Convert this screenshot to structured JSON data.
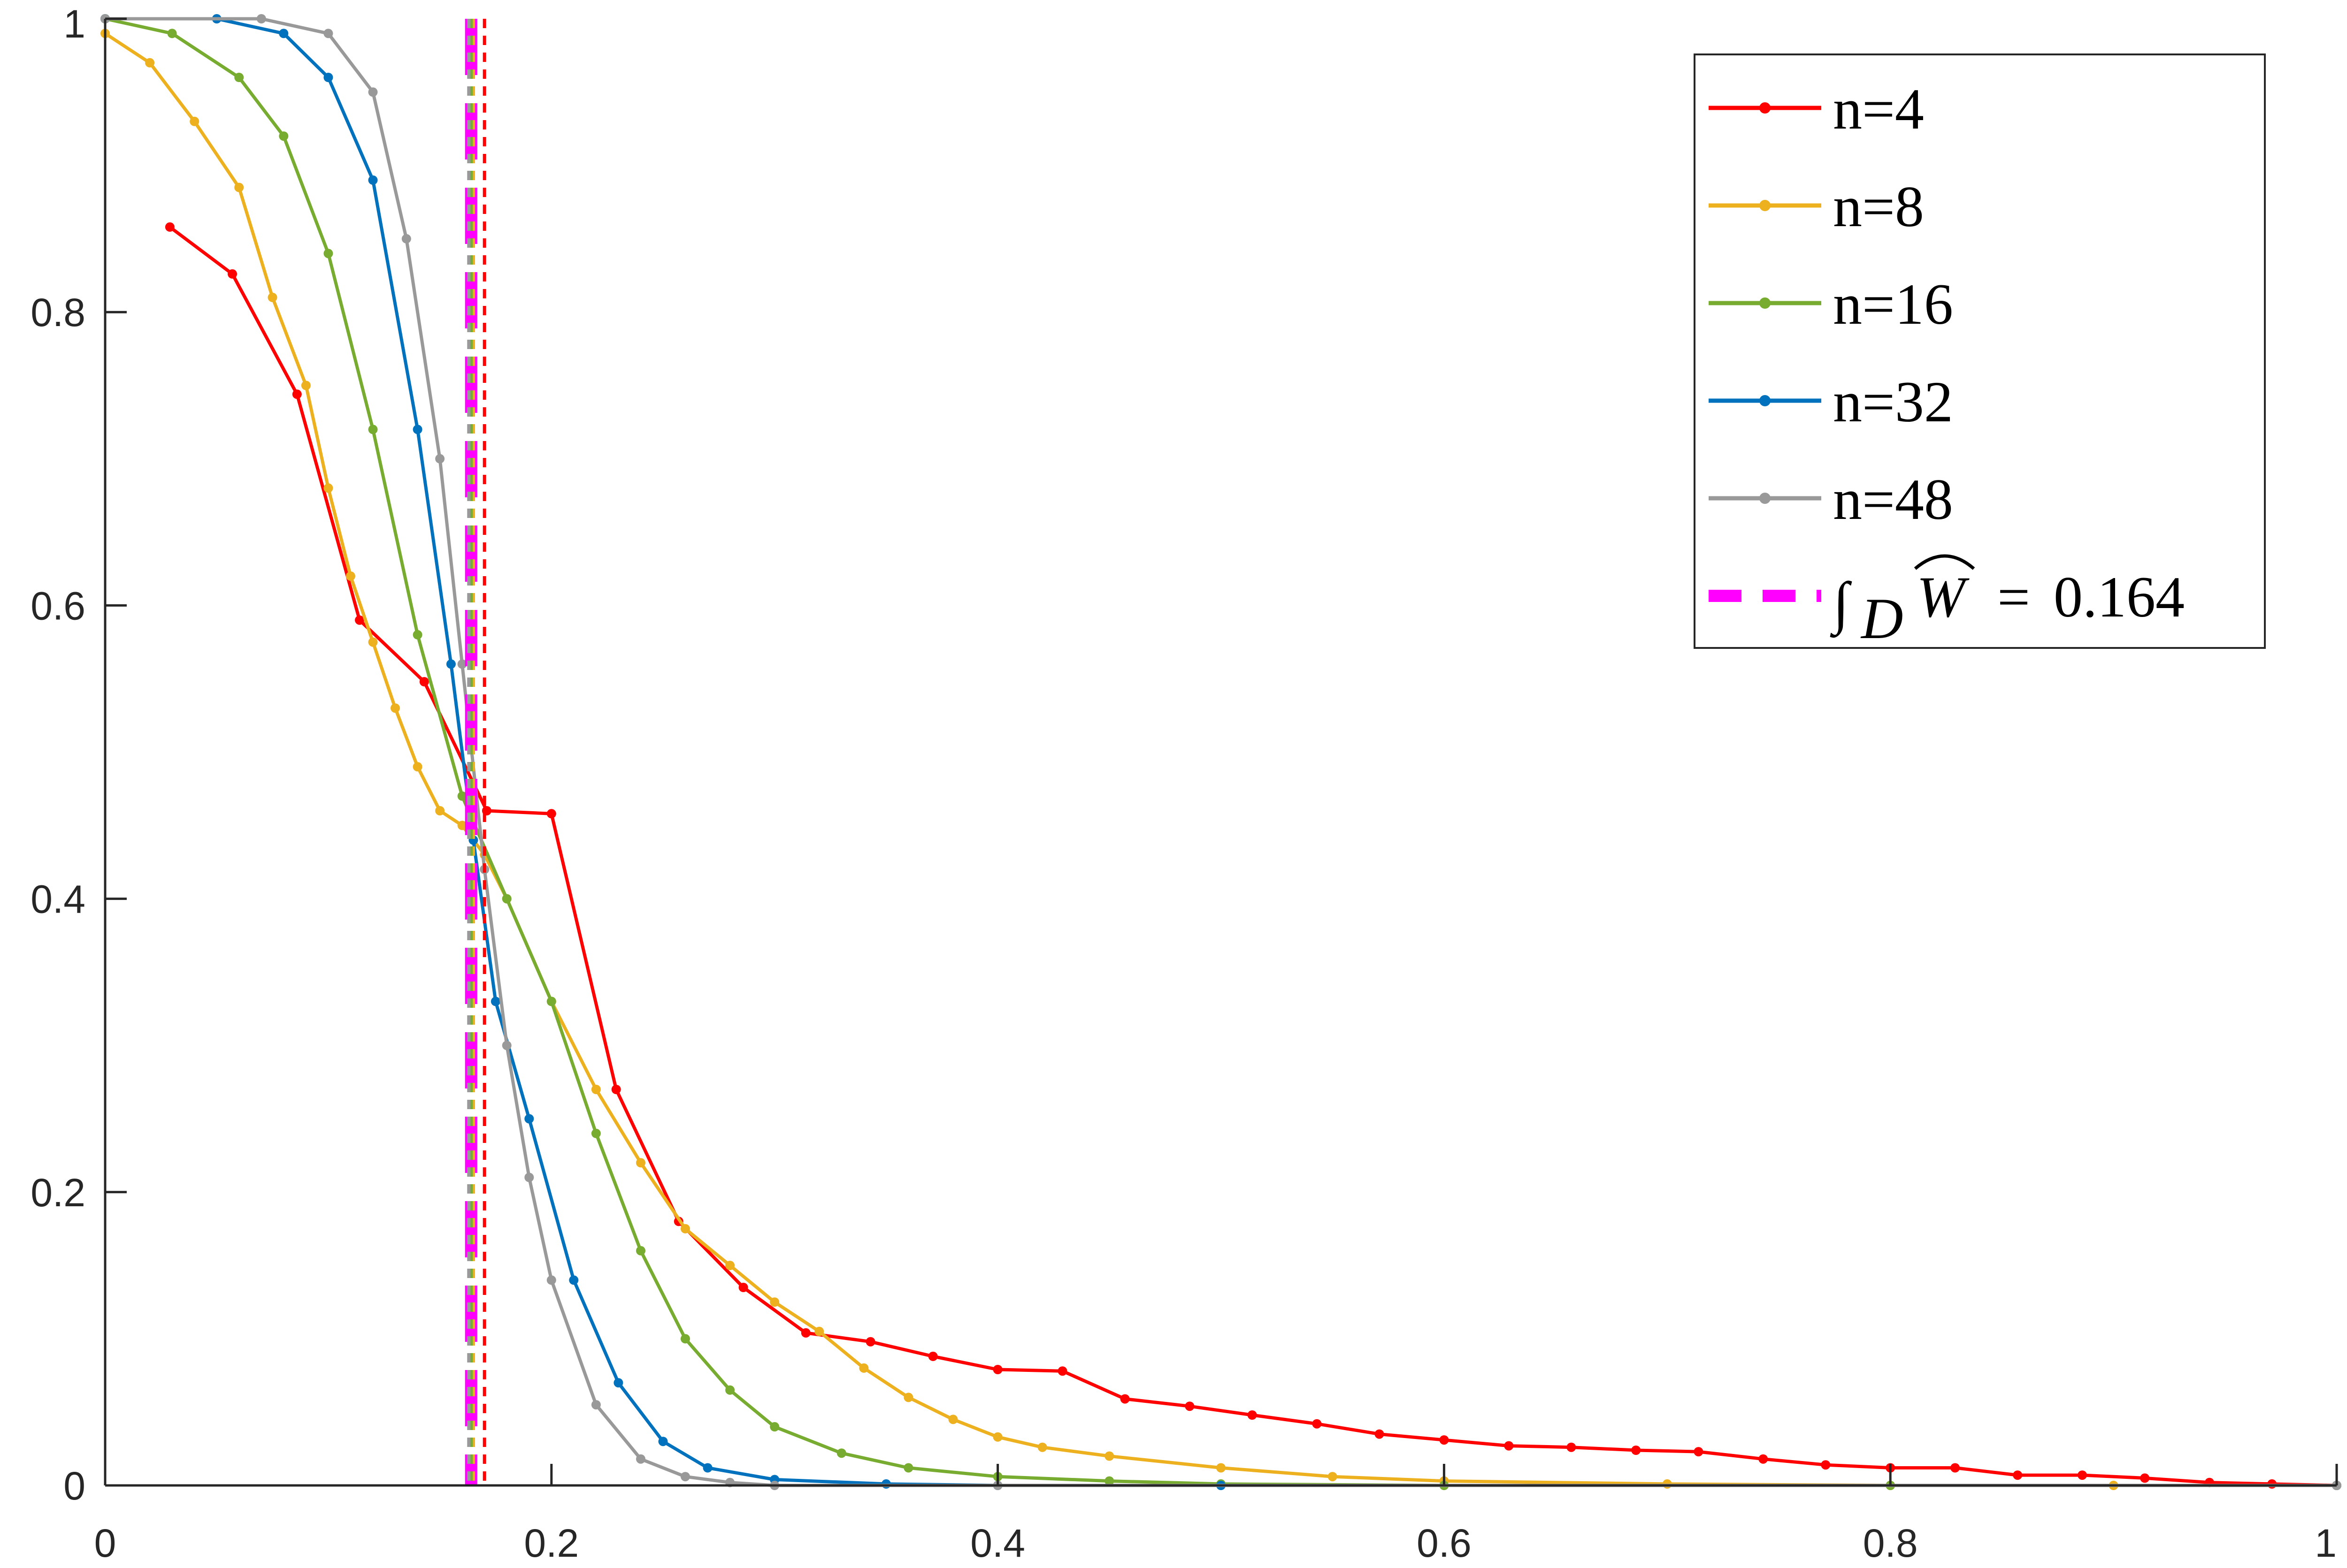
{
  "chart_data": {
    "type": "line",
    "xlim": [
      0,
      1
    ],
    "ylim": [
      0,
      1
    ],
    "x_ticks": [
      "0",
      "0.2",
      "0.4",
      "0.6",
      "0.8",
      "1"
    ],
    "y_ticks": [
      "0",
      "0.2",
      "0.4",
      "0.6",
      "0.8",
      "1"
    ],
    "grid": false,
    "legend_position": "top-right",
    "series": [
      {
        "name": "n=4",
        "color": "#ff0000",
        "marker": "dot",
        "x": [
          0.029,
          0.057,
          0.086,
          0.114,
          0.143,
          0.171,
          0.2,
          0.229,
          0.257,
          0.286,
          0.314,
          0.343,
          0.371,
          0.4,
          0.429,
          0.457,
          0.486,
          0.514,
          0.543,
          0.571,
          0.6,
          0.629,
          0.657,
          0.686,
          0.714,
          0.743,
          0.771,
          0.8,
          0.829,
          0.857,
          0.886,
          0.914,
          0.943,
          0.971,
          1.0
        ],
        "y": [
          0.858,
          0.826,
          0.744,
          0.59,
          0.548,
          0.46,
          0.458,
          0.27,
          0.18,
          0.135,
          0.104,
          0.098,
          0.088,
          0.079,
          0.078,
          0.059,
          0.054,
          0.048,
          0.042,
          0.035,
          0.031,
          0.027,
          0.026,
          0.024,
          0.023,
          0.018,
          0.014,
          0.012,
          0.012,
          0.007,
          0.007,
          0.005,
          0.002,
          0.001,
          0.0
        ]
      },
      {
        "name": "n=8",
        "color": "#edb120",
        "marker": "dot",
        "x": [
          0.0,
          0.02,
          0.04,
          0.06,
          0.075,
          0.09,
          0.1,
          0.11,
          0.12,
          0.13,
          0.14,
          0.15,
          0.16,
          0.17,
          0.18,
          0.2,
          0.22,
          0.24,
          0.26,
          0.28,
          0.3,
          0.32,
          0.34,
          0.36,
          0.38,
          0.4,
          0.42,
          0.45,
          0.5,
          0.55,
          0.6,
          0.7,
          0.8,
          0.9,
          1.0
        ],
        "y": [
          0.99,
          0.97,
          0.93,
          0.885,
          0.81,
          0.75,
          0.68,
          0.62,
          0.575,
          0.53,
          0.49,
          0.46,
          0.45,
          0.43,
          0.4,
          0.33,
          0.27,
          0.22,
          0.175,
          0.15,
          0.125,
          0.105,
          0.08,
          0.06,
          0.045,
          0.033,
          0.026,
          0.02,
          0.012,
          0.006,
          0.003,
          0.001,
          0.0,
          0.0,
          0.0
        ]
      },
      {
        "name": "n=16",
        "color": "#77ac30",
        "marker": "dot",
        "x": [
          0.0,
          0.03,
          0.06,
          0.08,
          0.1,
          0.12,
          0.14,
          0.16,
          0.18,
          0.2,
          0.22,
          0.24,
          0.26,
          0.28,
          0.3,
          0.33,
          0.36,
          0.4,
          0.45,
          0.5,
          0.6,
          0.8,
          1.0
        ],
        "y": [
          1.0,
          0.99,
          0.96,
          0.92,
          0.84,
          0.72,
          0.58,
          0.47,
          0.4,
          0.33,
          0.24,
          0.16,
          0.1,
          0.065,
          0.04,
          0.022,
          0.012,
          0.006,
          0.003,
          0.001,
          0.0,
          0.0,
          0.0
        ]
      },
      {
        "name": "n=32",
        "color": "#0072bd",
        "marker": "dot",
        "x": [
          0.0,
          0.05,
          0.08,
          0.1,
          0.12,
          0.14,
          0.155,
          0.165,
          0.175,
          0.19,
          0.21,
          0.23,
          0.25,
          0.27,
          0.3,
          0.35,
          0.4,
          0.5,
          1.0
        ],
        "y": [
          1.0,
          1.0,
          0.99,
          0.96,
          0.89,
          0.72,
          0.56,
          0.44,
          0.33,
          0.25,
          0.14,
          0.07,
          0.03,
          0.012,
          0.004,
          0.001,
          0.0,
          0.0,
          0.0
        ]
      },
      {
        "name": "n=48",
        "color": "#999999",
        "marker": "dot",
        "x": [
          0.0,
          0.07,
          0.1,
          0.12,
          0.135,
          0.15,
          0.16,
          0.17,
          0.18,
          0.19,
          0.2,
          0.22,
          0.24,
          0.26,
          0.28,
          0.3,
          0.4,
          1.0
        ],
        "y": [
          1.0,
          1.0,
          0.99,
          0.95,
          0.85,
          0.7,
          0.56,
          0.42,
          0.3,
          0.21,
          0.14,
          0.055,
          0.018,
          0.006,
          0.002,
          0.0,
          0.0,
          0.0
        ]
      }
    ],
    "reference_lines": [
      {
        "type": "vertical",
        "x": 0.164,
        "color": "#ff00ff",
        "style": "dashed"
      },
      {
        "type": "vertical",
        "x": 0.17,
        "color": "#ff0000",
        "style": "dotted"
      },
      {
        "type": "vertical",
        "x": 0.165,
        "color": "#edb120",
        "style": "dotted"
      },
      {
        "type": "vertical",
        "x": 0.164,
        "color": "#77ac30",
        "style": "dotted"
      },
      {
        "type": "vertical",
        "x": 0.163,
        "color": "#0072bd",
        "style": "dotted"
      },
      {
        "type": "vertical",
        "x": 0.163,
        "color": "#999999",
        "style": "dotted"
      }
    ],
    "legend": {
      "entries": [
        "n=4",
        "n=8",
        "n=16",
        "n=32",
        "n=48"
      ],
      "integral_label": {
        "integral_sign": "∫",
        "subscript": "D",
        "variable": "W",
        "equals": "=",
        "value": "0.164",
        "color": "#ff00ff"
      }
    }
  }
}
